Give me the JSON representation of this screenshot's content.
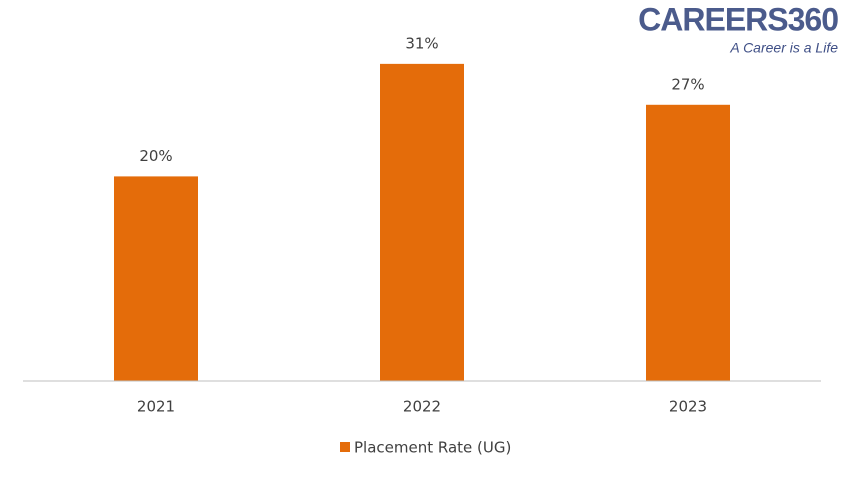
{
  "chart_data": {
    "type": "bar",
    "categories": [
      "2021",
      "2022",
      "2023"
    ],
    "series": [
      {
        "name": "Placement Rate (UG)",
        "color": "#e46c0a",
        "values": [
          20,
          31,
          27
        ],
        "value_labels": [
          "20%",
          "31%",
          "27%"
        ]
      }
    ],
    "legend": "bottom",
    "logo": {
      "name": "CAREERS360",
      "tagline": "A Career is a Life"
    }
  }
}
